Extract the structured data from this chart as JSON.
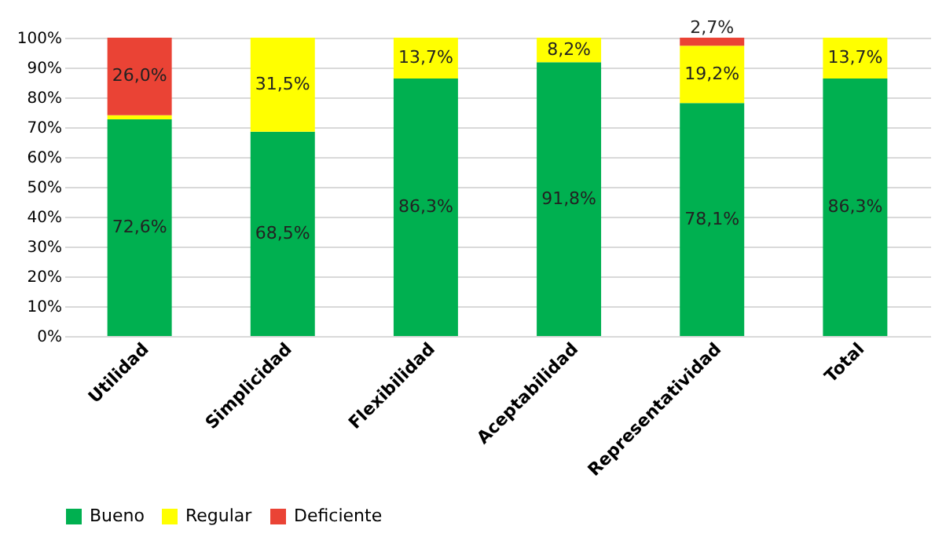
{
  "chart_data": {
    "type": "bar",
    "stacked": true,
    "categories": [
      "Utilidad",
      "Simplicidad",
      "Flexibilidad",
      "Aceptabilidad",
      "Representatividad",
      "Total"
    ],
    "series": [
      {
        "name": "Bueno",
        "color": "#00b050",
        "values": [
          72.6,
          68.5,
          86.3,
          91.8,
          78.1,
          86.3
        ],
        "value_labels": [
          "72,6%",
          "68,5%",
          "86,3%",
          "91,8%",
          "78,1%",
          "86,3%"
        ]
      },
      {
        "name": "Regular",
        "color": "#ffff00",
        "values": [
          1.4,
          31.5,
          13.7,
          8.2,
          19.2,
          13.7
        ],
        "value_labels": [
          null,
          "31,5%",
          "13,7%",
          "8,2%",
          "19,2%",
          "13,7%"
        ]
      },
      {
        "name": "Deficiente",
        "color": "#ea4335",
        "values": [
          26.0,
          0,
          0,
          0,
          2.7,
          0
        ],
        "value_labels": [
          "26,0%",
          null,
          null,
          null,
          "2,7%",
          null
        ]
      }
    ],
    "ylim": [
      0,
      100
    ],
    "yticks": [
      {
        "value": 0,
        "label": "0%"
      },
      {
        "value": 10,
        "label": "10%"
      },
      {
        "value": 20,
        "label": "20%"
      },
      {
        "value": 30,
        "label": "30%"
      },
      {
        "value": 40,
        "label": "40%"
      },
      {
        "value": 50,
        "label": "50%"
      },
      {
        "value": 60,
        "label": "60%"
      },
      {
        "value": 70,
        "label": "70%"
      },
      {
        "value": 80,
        "label": "80%"
      },
      {
        "value": 90,
        "label": "90%"
      },
      {
        "value": 100,
        "label": "100%"
      }
    ],
    "grid": "y",
    "legend": "bottom"
  }
}
